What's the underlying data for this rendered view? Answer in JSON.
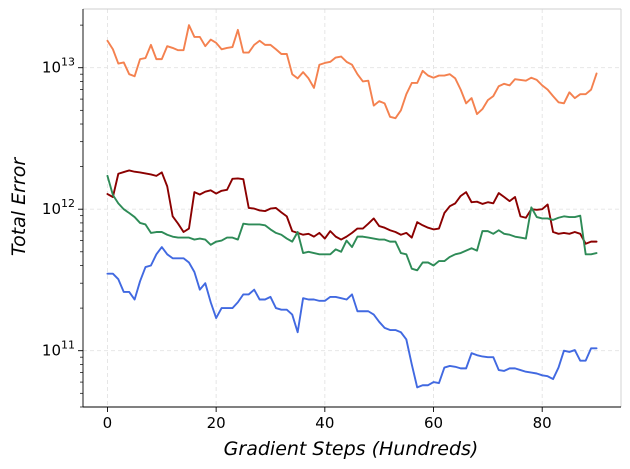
{
  "chart_data": {
    "type": "line",
    "title": "",
    "xlabel": "Gradient Steps (Hundreds)",
    "ylabel": "Total Error",
    "yscale": "log",
    "xlim": [
      -4.5,
      94.5
    ],
    "ylim": [
      40000000000.0,
      26000000000000.0
    ],
    "x_ticks": [
      0,
      20,
      40,
      60,
      80
    ],
    "x_tick_labels": [
      "0",
      "20",
      "40",
      "60",
      "80"
    ],
    "y_ticks": [
      100000000000.0,
      1000000000000.0,
      10000000000000.0
    ],
    "y_tick_labels": [
      {
        "base": "10",
        "exp": "11"
      },
      {
        "base": "10",
        "exp": "12"
      },
      {
        "base": "10",
        "exp": "13"
      }
    ],
    "grid": true,
    "legend": false,
    "x": [
      0,
      1,
      2,
      3,
      4,
      5,
      6,
      7,
      8,
      9,
      10,
      11,
      12,
      13,
      14,
      15,
      16,
      17,
      18,
      19,
      20,
      21,
      22,
      23,
      24,
      25,
      26,
      27,
      28,
      29,
      30,
      31,
      32,
      33,
      34,
      35,
      36,
      37,
      38,
      39,
      40,
      41,
      42,
      43,
      44,
      45,
      46,
      47,
      48,
      49,
      50,
      51,
      52,
      53,
      54,
      55,
      56,
      57,
      58,
      59,
      60,
      61,
      62,
      63,
      64,
      65,
      66,
      67,
      68,
      69,
      70,
      71,
      72,
      73,
      74,
      75,
      76,
      77,
      78,
      79,
      80,
      81,
      82,
      83,
      84,
      85,
      86,
      87,
      88,
      89,
      90
    ],
    "series": [
      {
        "color": "#f4814f",
        "values": [
          15500000000000.0,
          13500000000000.0,
          10700000000000.0,
          10900000000000.0,
          9000000000000.0,
          8700000000000.0,
          11500000000000.0,
          11700000000000.0,
          14500000000000.0,
          11500000000000.0,
          11500000000000.0,
          14200000000000.0,
          13800000000000.0,
          13300000000000.0,
          13300000000000.0,
          20000000000000.0,
          16500000000000.0,
          16500000000000.0,
          14200000000000.0,
          15800000000000.0,
          15000000000000.0,
          13500000000000.0,
          13800000000000.0,
          14000000000000.0,
          18500000000000.0,
          12800000000000.0,
          12800000000000.0,
          14500000000000.0,
          15500000000000.0,
          14500000000000.0,
          14500000000000.0,
          13500000000000.0,
          12500000000000.0,
          12500000000000.0,
          9000000000000.0,
          8400000000000.0,
          9300000000000.0,
          8400000000000.0,
          7200000000000.0,
          10500000000000.0,
          10800000000000.0,
          11000000000000.0,
          11800000000000.0,
          12000000000000.0,
          11000000000000.0,
          10500000000000.0,
          9000000000000.0,
          8000000000000.0,
          8100000000000.0,
          5400000000000.0,
          5800000000000.0,
          5600000000000.0,
          4500000000000.0,
          4400000000000.0,
          5000000000000.0,
          6500000000000.0,
          7800000000000.0,
          7800000000000.0,
          9500000000000.0,
          8800000000000.0,
          8500000000000.0,
          8800000000000.0,
          8800000000000.0,
          9000000000000.0,
          8400000000000.0,
          7000000000000.0,
          5600000000000.0,
          6100000000000.0,
          4700000000000.0,
          5100000000000.0,
          5900000000000.0,
          6300000000000.0,
          7400000000000.0,
          7700000000000.0,
          7500000000000.0,
          8300000000000.0,
          8200000000000.0,
          8100000000000.0,
          8500000000000.0,
          8200000000000.0,
          7500000000000.0,
          7000000000000.0,
          6300000000000.0,
          5700000000000.0,
          5600000000000.0,
          6700000000000.0,
          6100000000000.0,
          6500000000000.0,
          6500000000000.0,
          7000000000000.0,
          9100000000000.0
        ]
      },
      {
        "color": "#8b0000",
        "values": [
          1280000000000.0,
          1220000000000.0,
          1780000000000.0,
          1830000000000.0,
          1880000000000.0,
          1840000000000.0,
          1820000000000.0,
          1790000000000.0,
          1760000000000.0,
          1720000000000.0,
          1820000000000.0,
          1450000000000.0,
          890000000000.0,
          790000000000.0,
          690000000000.0,
          730000000000.0,
          1320000000000.0,
          1270000000000.0,
          1330000000000.0,
          1360000000000.0,
          1290000000000.0,
          1350000000000.0,
          1370000000000.0,
          1640000000000.0,
          1650000000000.0,
          1630000000000.0,
          1020000000000.0,
          1010000000000.0,
          980000000000.0,
          970000000000.0,
          1010000000000.0,
          1020000000000.0,
          950000000000.0,
          890000000000.0,
          700000000000.0,
          680000000000.0,
          660000000000.0,
          670000000000.0,
          640000000000.0,
          680000000000.0,
          620000000000.0,
          700000000000.0,
          640000000000.0,
          610000000000.0,
          640000000000.0,
          680000000000.0,
          730000000000.0,
          730000000000.0,
          790000000000.0,
          860000000000.0,
          760000000000.0,
          740000000000.0,
          710000000000.0,
          690000000000.0,
          660000000000.0,
          680000000000.0,
          630000000000.0,
          810000000000.0,
          770000000000.0,
          740000000000.0,
          720000000000.0,
          730000000000.0,
          940000000000.0,
          1050000000000.0,
          1100000000000.0,
          1240000000000.0,
          1320000000000.0,
          1120000000000.0,
          1130000000000.0,
          1090000000000.0,
          1120000000000.0,
          1100000000000.0,
          1300000000000.0,
          1220000000000.0,
          1140000000000.0,
          1220000000000.0,
          890000000000.0,
          870000000000.0,
          1000000000000.0,
          990000000000.0,
          1000000000000.0,
          1080000000000.0,
          690000000000.0,
          670000000000.0,
          680000000000.0,
          670000000000.0,
          690000000000.0,
          670000000000.0,
          570000000000.0,
          590000000000.0,
          590000000000.0
        ]
      },
      {
        "color": "#2e8b57",
        "values": [
          1720000000000.0,
          1260000000000.0,
          1100000000000.0,
          1000000000000.0,
          940000000000.0,
          880000000000.0,
          800000000000.0,
          780000000000.0,
          680000000000.0,
          690000000000.0,
          690000000000.0,
          660000000000.0,
          640000000000.0,
          630000000000.0,
          630000000000.0,
          630000000000.0,
          610000000000.0,
          620000000000.0,
          610000000000.0,
          560000000000.0,
          590000000000.0,
          600000000000.0,
          630000000000.0,
          630000000000.0,
          610000000000.0,
          790000000000.0,
          780000000000.0,
          780000000000.0,
          780000000000.0,
          770000000000.0,
          720000000000.0,
          680000000000.0,
          660000000000.0,
          620000000000.0,
          590000000000.0,
          690000000000.0,
          490000000000.0,
          500000000000.0,
          490000000000.0,
          480000000000.0,
          480000000000.0,
          480000000000.0,
          520000000000.0,
          500000000000.0,
          600000000000.0,
          540000000000.0,
          640000000000.0,
          640000000000.0,
          630000000000.0,
          620000000000.0,
          610000000000.0,
          610000000000.0,
          590000000000.0,
          590000000000.0,
          490000000000.0,
          480000000000.0,
          380000000000.0,
          370000000000.0,
          420000000000.0,
          420000000000.0,
          400000000000.0,
          430000000000.0,
          430000000000.0,
          460000000000.0,
          480000000000.0,
          490000000000.0,
          510000000000.0,
          530000000000.0,
          510000000000.0,
          700000000000.0,
          700000000000.0,
          670000000000.0,
          710000000000.0,
          670000000000.0,
          660000000000.0,
          640000000000.0,
          630000000000.0,
          620000000000.0,
          1030000000000.0,
          880000000000.0,
          860000000000.0,
          860000000000.0,
          840000000000.0,
          870000000000.0,
          890000000000.0,
          880000000000.0,
          880000000000.0,
          900000000000.0,
          480000000000.0,
          480000000000.0,
          490000000000.0
        ]
      },
      {
        "color": "#4169e1",
        "values": [
          350000000000.0,
          350000000000.0,
          320000000000.0,
          260000000000.0,
          260000000000.0,
          230000000000.0,
          310000000000.0,
          390000000000.0,
          400000000000.0,
          480000000000.0,
          540000000000.0,
          480000000000.0,
          450000000000.0,
          450000000000.0,
          450000000000.0,
          420000000000.0,
          360000000000.0,
          270000000000.0,
          300000000000.0,
          220000000000.0,
          170000000000.0,
          200000000000.0,
          200000000000.0,
          200000000000.0,
          220000000000.0,
          250000000000.0,
          250000000000.0,
          270000000000.0,
          230000000000.0,
          230000000000.0,
          240000000000.0,
          200000000000.0,
          195000000000.0,
          195000000000.0,
          180000000000.0,
          135000000000.0,
          235000000000.0,
          230000000000.0,
          230000000000.0,
          225000000000.0,
          225000000000.0,
          240000000000.0,
          240000000000.0,
          235000000000.0,
          230000000000.0,
          250000000000.0,
          190000000000.0,
          190000000000.0,
          190000000000.0,
          180000000000.0,
          160000000000.0,
          145000000000.0,
          140000000000.0,
          140000000000.0,
          135000000000.0,
          120000000000.0,
          80000000000.0,
          55000000000.0,
          57000000000.0,
          57000000000.0,
          60000000000.0,
          59000000000.0,
          76000000000.0,
          78000000000.0,
          77000000000.0,
          75000000000.0,
          75000000000.0,
          96000000000.0,
          93000000000.0,
          91000000000.0,
          90000000000.0,
          90000000000.0,
          73000000000.0,
          72000000000.0,
          75000000000.0,
          75000000000.0,
          73000000000.0,
          71000000000.0,
          70000000000.0,
          69000000000.0,
          67000000000.0,
          66000000000.0,
          63000000000.0,
          76000000000.0,
          100000000000.0,
          98000000000.0,
          101000000000.0,
          85000000000.0,
          85000000000.0,
          104000000000.0,
          104000000000.0
        ]
      }
    ]
  }
}
